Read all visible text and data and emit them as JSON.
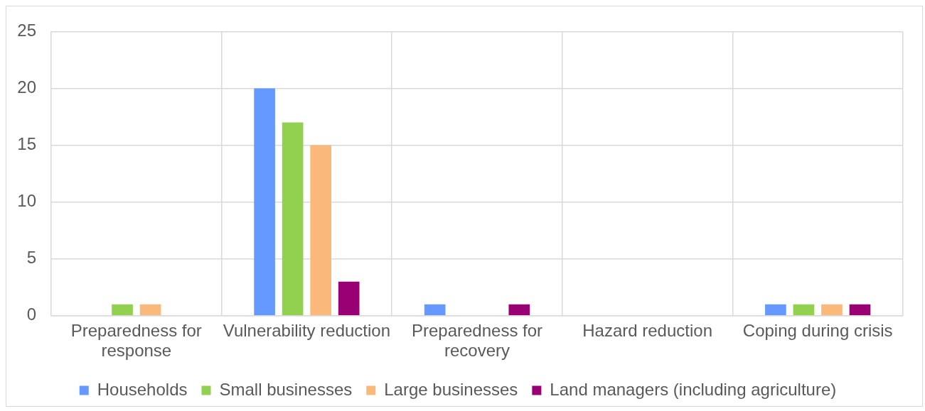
{
  "chart_data": {
    "type": "bar",
    "categories": [
      "Preparedness for response",
      "Vulnerability reduction",
      "Preparedness for recovery",
      "Hazard reduction",
      "Coping during crisis"
    ],
    "series": [
      {
        "name": "Households",
        "color": "#6699ff",
        "values": [
          0,
          20,
          1,
          0,
          1
        ]
      },
      {
        "name": "Small businesses",
        "color": "#92d050",
        "values": [
          1,
          17,
          0,
          0,
          1
        ]
      },
      {
        "name": "Large businesses",
        "color": "#fab97b",
        "values": [
          1,
          15,
          0,
          0,
          1
        ]
      },
      {
        "name": "Land managers (including agriculture)",
        "color": "#990073",
        "values": [
          0,
          3,
          1,
          0,
          1
        ]
      }
    ],
    "ylim": [
      0,
      25
    ],
    "yticks": [
      0,
      5,
      10,
      15,
      20,
      25
    ],
    "grid": true,
    "legend": "bottom"
  }
}
